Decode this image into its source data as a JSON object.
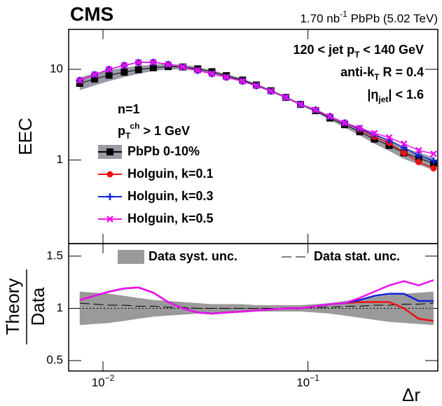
{
  "chart_data": [
    {
      "type": "line",
      "ylog": true,
      "xlog": true,
      "title": "CMS",
      "subtitle": [
        {
          "text": "1.70 nb"
        },
        {
          "text": "-1",
          "sup": true
        },
        {
          "text": " PbPb (5.02 TeV)"
        }
      ],
      "ylabel": "EEC",
      "annotations": [
        [
          {
            "text": "120 < jet p"
          },
          {
            "text": "T",
            "sub": true
          },
          {
            "text": " < 140 GeV"
          }
        ],
        [
          {
            "text": "anti-k"
          },
          {
            "text": "T",
            "sub": true
          },
          {
            "text": " R = 0.4"
          }
        ],
        [
          {
            "text": "|η"
          },
          {
            "text": "jet",
            "sub": true
          },
          {
            "text": "| < 1.6"
          }
        ],
        [
          {
            "text": "n=1"
          }
        ],
        [
          {
            "text": "p"
          },
          {
            "text": "T",
            "sub": true
          },
          {
            "text": "ch",
            "sup": true
          },
          {
            "text": " > 1 GeV"
          }
        ]
      ],
      "x": [
        0.0077,
        0.0091,
        0.0107,
        0.0127,
        0.0149,
        0.0176,
        0.0208,
        0.0245,
        0.029,
        0.034,
        0.04,
        0.048,
        0.056,
        0.066,
        0.078,
        0.092,
        0.109,
        0.128,
        0.151,
        0.179,
        0.211,
        0.249,
        0.294,
        0.347,
        0.41
      ],
      "series": [
        {
          "name": "PbPb 0-10%",
          "color": "#000000",
          "marker": "square",
          "band_color": "#9a9aa6",
          "values": [
            7.0,
            7.8,
            8.6,
            9.3,
            9.9,
            10.4,
            10.7,
            10.6,
            10.1,
            9.4,
            8.5,
            7.6,
            6.7,
            5.8,
            4.9,
            4.1,
            3.5,
            2.9,
            2.45,
            2.05,
            1.7,
            1.45,
            1.2,
            1.05,
            0.92
          ],
          "errors": [
            1.12,
            1.17,
            1.2,
            1.12,
            0.99,
            0.83,
            0.75,
            0.64,
            0.51,
            0.38,
            0.34,
            0.3,
            0.2,
            0.17,
            0.15,
            0.12,
            0.14,
            0.15,
            0.17,
            0.18,
            0.19,
            0.19,
            0.17,
            0.16,
            0.15
          ]
        },
        {
          "name": "Holguin, k=0.1",
          "color": "#ee1111",
          "marker": "circle",
          "values": [
            7.56,
            8.74,
            9.98,
            11.07,
            11.88,
            11.96,
            11.34,
            10.6,
            9.7,
            8.93,
            8.16,
            7.37,
            6.57,
            5.74,
            4.9,
            4.1,
            3.57,
            3.02,
            2.57,
            2.17,
            1.8,
            1.54,
            1.2,
            0.95,
            0.81
          ]
        },
        {
          "name": "Holguin, k=0.3",
          "color": "#1122dd",
          "marker": "plus",
          "values": [
            7.56,
            8.74,
            9.98,
            11.07,
            11.88,
            11.96,
            11.34,
            10.6,
            9.7,
            8.93,
            8.16,
            7.37,
            6.57,
            5.74,
            4.9,
            4.1,
            3.57,
            3.02,
            2.57,
            2.21,
            1.9,
            1.65,
            1.37,
            1.12,
            0.98
          ]
        },
        {
          "name": "Holguin, k=0.5",
          "color": "#ee11ee",
          "marker": "x",
          "values": [
            7.56,
            8.74,
            9.98,
            11.07,
            11.88,
            11.96,
            11.34,
            10.6,
            9.7,
            8.93,
            8.16,
            7.37,
            6.57,
            5.74,
            4.9,
            4.1,
            3.57,
            3.02,
            2.57,
            2.26,
            1.97,
            1.77,
            1.51,
            1.28,
            1.17
          ]
        }
      ],
      "xlim": [
        0.0068,
        0.43
      ],
      "ylim": [
        0.12,
        27.5
      ],
      "yticks": [
        10,
        1
      ]
    },
    {
      "type": "line",
      "xlog": true,
      "ylabel": [
        "Theory",
        "Data"
      ],
      "xlabel": "Δr",
      "x": [
        0.0077,
        0.0091,
        0.0107,
        0.0127,
        0.0149,
        0.0176,
        0.0208,
        0.0245,
        0.029,
        0.034,
        0.04,
        0.048,
        0.056,
        0.066,
        0.078,
        0.092,
        0.109,
        0.128,
        0.151,
        0.179,
        0.211,
        0.249,
        0.294,
        0.347,
        0.41
      ],
      "band": {
        "name": "Data syst. unc.",
        "color": "#9a9a9a",
        "center": 1,
        "errors": [
          0.16,
          0.15,
          0.14,
          0.12,
          0.1,
          0.08,
          0.07,
          0.06,
          0.05,
          0.04,
          0.04,
          0.04,
          0.03,
          0.03,
          0.03,
          0.03,
          0.04,
          0.05,
          0.07,
          0.09,
          0.11,
          0.13,
          0.14,
          0.15,
          0.16
        ]
      },
      "stat": {
        "name": "Data stat. unc.",
        "color": "#000000",
        "values": [
          1.05,
          1.04,
          1.03,
          1.03,
          1.02,
          1.02,
          1.01,
          1.01,
          1.0,
          1.0,
          1.0,
          1.0,
          1.0,
          1.0,
          1.0,
          1.0,
          1.01,
          1.01,
          1.02,
          1.02,
          1.03,
          1.03,
          1.04,
          1.04,
          1.05
        ]
      },
      "reference": 1,
      "series": [
        {
          "name": "Holguin, k=0.1",
          "color": "#ee1111",
          "values": [
            1.08,
            1.12,
            1.16,
            1.19,
            1.2,
            1.15,
            1.06,
            1.0,
            0.96,
            0.95,
            0.96,
            0.97,
            0.98,
            0.99,
            1.0,
            1.0,
            1.02,
            1.04,
            1.05,
            1.06,
            1.06,
            1.06,
            1.0,
            0.9,
            0.88
          ]
        },
        {
          "name": "Holguin, k=0.3",
          "color": "#1122dd",
          "values": [
            1.08,
            1.12,
            1.16,
            1.19,
            1.2,
            1.15,
            1.06,
            1.0,
            0.96,
            0.95,
            0.96,
            0.97,
            0.98,
            0.99,
            1.0,
            1.0,
            1.02,
            1.04,
            1.05,
            1.08,
            1.12,
            1.14,
            1.14,
            1.07,
            1.07
          ]
        },
        {
          "name": "Holguin, k=0.5",
          "color": "#ee11ee",
          "values": [
            1.08,
            1.12,
            1.16,
            1.19,
            1.2,
            1.15,
            1.06,
            1.0,
            0.96,
            0.95,
            0.96,
            0.97,
            0.98,
            0.99,
            1.0,
            1.0,
            1.02,
            1.04,
            1.05,
            1.1,
            1.16,
            1.22,
            1.26,
            1.22,
            1.27
          ]
        }
      ],
      "xlim": [
        0.0068,
        0.43
      ],
      "ylim": [
        0.4,
        1.62
      ],
      "yticks": [
        1.5,
        1,
        0.5
      ],
      "xticks": [
        {
          "value": 0.01,
          "label": "10",
          "exponent": "−2"
        },
        {
          "value": 0.1,
          "label": "10",
          "exponent": "−1"
        }
      ]
    }
  ]
}
